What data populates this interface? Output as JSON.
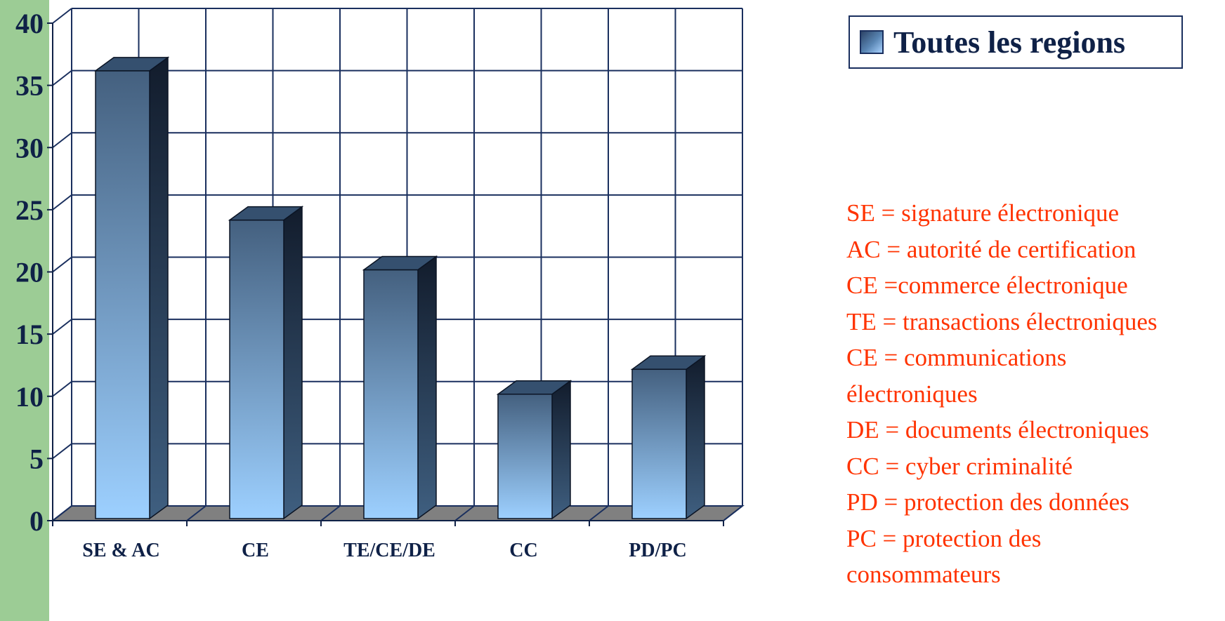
{
  "chart_data": {
    "type": "bar",
    "categories": [
      "SE & AC",
      "CE",
      "TE/CE/DE",
      "CC",
      "PD/PC"
    ],
    "series": [
      {
        "name": "Toutes les regions",
        "values": [
          36,
          24,
          20,
          10,
          12
        ]
      }
    ],
    "yticks": [
      "0",
      "5",
      "10",
      "15",
      "20",
      "25",
      "30",
      "35",
      "40"
    ],
    "ylim": [
      0,
      40
    ],
    "ystep": 5,
    "grid": true,
    "legend_position": "top-right",
    "colors": {
      "bar_front_top": "#44607f",
      "bar_front_bottom": "#9dd0ff",
      "bar_side": "#1b2940",
      "bar_top": "#35506f",
      "grid": "#1a2f5e",
      "floor": "#808080",
      "axis_text": "#0f2147"
    }
  },
  "legend": {
    "label": "Toutes les regions"
  },
  "notes": [
    "SE = signature électronique",
    "AC = autorité de certification",
    "CE =commerce électronique",
    "TE = transactions électroniques",
    "CE = communications",
    "électroniques",
    "DE = documents électroniques",
    "CC = cyber criminalité",
    "PD = protection des données",
    "PC = protection des",
    "consommateurs"
  ],
  "colors": {
    "notes_text": "#ff3300",
    "side_strip": "#9ccc95"
  }
}
